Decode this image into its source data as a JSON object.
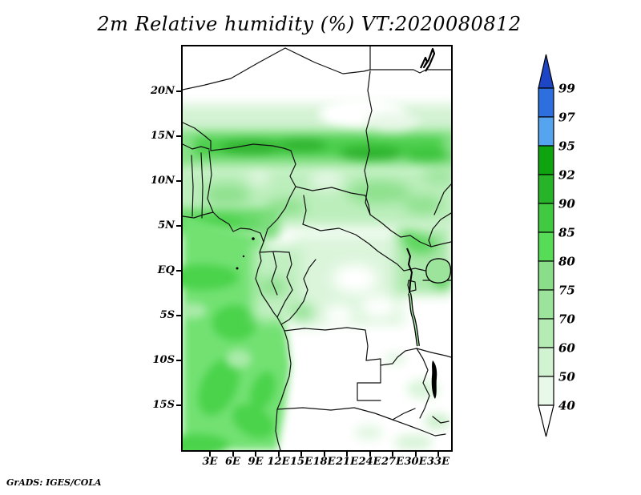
{
  "title": "2m Relative humidity (%) VT:2020080812",
  "credit": "GrADS: IGES/COLA",
  "map": {
    "lat_ticks": [
      {
        "label": "20N",
        "deg": 20
      },
      {
        "label": "15N",
        "deg": 15
      },
      {
        "label": "10N",
        "deg": 10
      },
      {
        "label": "5N",
        "deg": 5
      },
      {
        "label": "EQ",
        "deg": 0
      },
      {
        "label": "5S",
        "deg": -5
      },
      {
        "label": "10S",
        "deg": -10
      },
      {
        "label": "15S",
        "deg": -15
      }
    ],
    "lon_ticks": [
      {
        "label": "3E",
        "deg": 3
      },
      {
        "label": "6E",
        "deg": 6
      },
      {
        "label": "9E",
        "deg": 9
      },
      {
        "label": "12E",
        "deg": 12
      },
      {
        "label": "15E",
        "deg": 15
      },
      {
        "label": "18E",
        "deg": 18
      },
      {
        "label": "21E",
        "deg": 21
      },
      {
        "label": "24E",
        "deg": 24
      },
      {
        "label": "27E",
        "deg": 27
      },
      {
        "label": "30E",
        "deg": 30
      },
      {
        "label": "33E",
        "deg": 33
      }
    ]
  },
  "colorbar": {
    "levels": [
      "99",
      "97",
      "95",
      "92",
      "90",
      "85",
      "80",
      "75",
      "70",
      "60",
      "50",
      "40"
    ],
    "colors": [
      "#1d45c6",
      "#2e6fe0",
      "#55a4f0",
      "#0fa30f",
      "#28b428",
      "#41c941",
      "#57dc57",
      "#8ade8a",
      "#9ce49c",
      "#b4ecb4",
      "#d2f3d2",
      "#e9f9e9",
      "#ffffff"
    ]
  },
  "chart_data": {
    "type": "heatmap",
    "title": "2m Relative humidity (%) VT:2020080812",
    "variable": "2m Relative humidity",
    "units": "%",
    "valid_time": "2020080812",
    "x_axis": {
      "ticks": [
        "3E",
        "6E",
        "9E",
        "12E",
        "15E",
        "18E",
        "21E",
        "24E",
        "27E",
        "30E",
        "33E"
      ],
      "range": [
        "0E",
        "35E"
      ]
    },
    "y_axis": {
      "ticks": [
        "20N",
        "15N",
        "10N",
        "5N",
        "EQ",
        "5S",
        "10S",
        "15S"
      ],
      "range": [
        "20S",
        "25N"
      ]
    },
    "colorbar_levels": [
      40,
      50,
      60,
      70,
      75,
      80,
      85,
      90,
      92,
      95,
      97,
      99
    ],
    "colorbar_colors": [
      "#1d45c6",
      "#2e6fe0",
      "#55a4f0",
      "#0fa30f",
      "#28b428",
      "#41c941",
      "#57dc57",
      "#8ade8a",
      "#9ce49c",
      "#b4ecb4",
      "#d2f3d2",
      "#e9f9e9",
      "#ffffff"
    ],
    "legend_position": "right",
    "regions": [
      {
        "area": "Sahara north of ~18N",
        "rh_percent": "below 40 (white)"
      },
      {
        "area": "Sahel band 12N-15N across Niger/Chad/Sudan",
        "rh_percent": "75-92 (dark green band)"
      },
      {
        "area": "Guinea coast and Cameroon 4N-6N",
        "rh_percent": "80-90"
      },
      {
        "area": "Atlantic ocean southwest of coast",
        "rh_percent": "75-85 (solid green)"
      },
      {
        "area": "Congo basin interior",
        "rh_percent": "50-70 (pale green)"
      },
      {
        "area": "Angola / Tanzania / Zambia interior",
        "rh_percent": "below 40-50 (white)"
      },
      {
        "area": "Lake Victoria vicinity",
        "rh_percent": "70-85"
      }
    ]
  }
}
